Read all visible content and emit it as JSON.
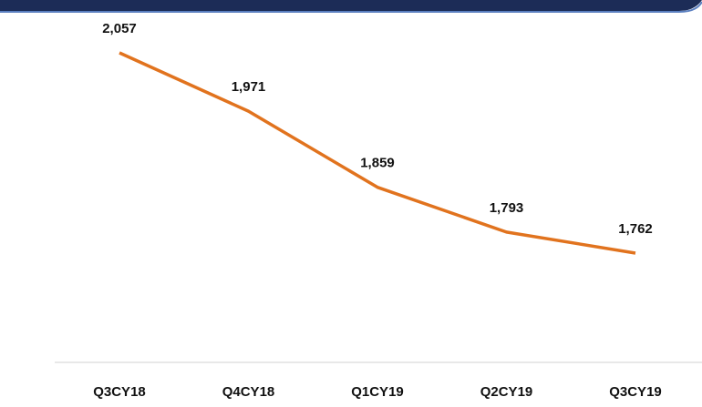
{
  "chart_data": {
    "type": "line",
    "categories": [
      "Q3CY18",
      "Q4CY18",
      "Q1CY19",
      "Q2CY19",
      "Q3CY19"
    ],
    "series": [
      {
        "color": "#e1731e",
        "values": [
          2057,
          1971,
          1859,
          1793,
          1762
        ],
        "value_labels": [
          "2,057",
          "1,971",
          "1,859",
          "1,793",
          "1,762"
        ]
      }
    ]
  }
}
